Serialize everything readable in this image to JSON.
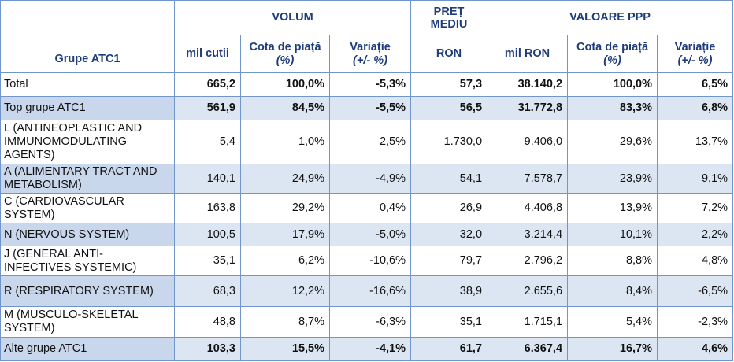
{
  "header": {
    "group": "Grupe ATC1",
    "volum": "VOLUM",
    "pret": "PREȚ MEDIU",
    "valoare": "VALOARE PPP",
    "sub": [
      {
        "text": "mil cutii"
      },
      {
        "text": "Cota de piață",
        "unit": "(%)"
      },
      {
        "text": "Variație",
        "unit": "(+/- %)"
      },
      {
        "text": "RON"
      },
      {
        "text": "mil RON"
      },
      {
        "text": "Cota de piață",
        "unit": "(%)"
      },
      {
        "text": "Variație",
        "unit": "(+/- %)"
      }
    ]
  },
  "table": {
    "rows": [
      [
        "Total",
        "665,2",
        "100,0%",
        "-5,3%",
        "57,3",
        "38.140,2",
        "100,0%",
        "6,5%"
      ],
      [
        "Top grupe ATC1",
        "561,9",
        "84,5%",
        "-5,5%",
        "56,5",
        "31.772,8",
        "83,3%",
        "6,8%"
      ],
      [
        "L (ANTINEOPLASTIC AND IMMUNOMODULATING AGENTS)",
        "5,4",
        "1,0%",
        "2,5%",
        "1.730,0",
        "9.406,0",
        "29,6%",
        "13,7%"
      ],
      [
        "A (ALIMENTARY TRACT AND METABOLISM)",
        "140,1",
        "24,9%",
        "-4,9%",
        "54,1",
        "7.578,7",
        "23,9%",
        "9,1%"
      ],
      [
        "C (CARDIOVASCULAR SYSTEM)",
        "163,8",
        "29,2%",
        "0,4%",
        "26,9",
        "4.406,8",
        "13,9%",
        "7,2%"
      ],
      [
        "N (NERVOUS SYSTEM)",
        "100,5",
        "17,9%",
        "-5,0%",
        "32,0",
        "3.214,4",
        "10,1%",
        "2,2%"
      ],
      [
        "J (GENERAL ANTI-INFECTIVES SYSTEMIC)",
        "35,1",
        "6,2%",
        "-10,6%",
        "79,7",
        "2.796,2",
        "8,8%",
        "4,8%"
      ],
      [
        "R (RESPIRATORY SYSTEM)",
        "68,3",
        "12,2%",
        "-16,6%",
        "38,9",
        "2.655,6",
        "8,4%",
        "-6,5%"
      ],
      [
        "M (MUSCULO-SKELETAL SYSTEM)",
        "48,8",
        "8,7%",
        "-6,3%",
        "35,1",
        "1.715,1",
        "5,4%",
        "-2,3%"
      ],
      [
        "Alte grupe ATC1",
        "103,3",
        "15,5%",
        "-4,1%",
        "61,7",
        "6.367,4",
        "16,7%",
        "4,6%"
      ]
    ]
  }
}
